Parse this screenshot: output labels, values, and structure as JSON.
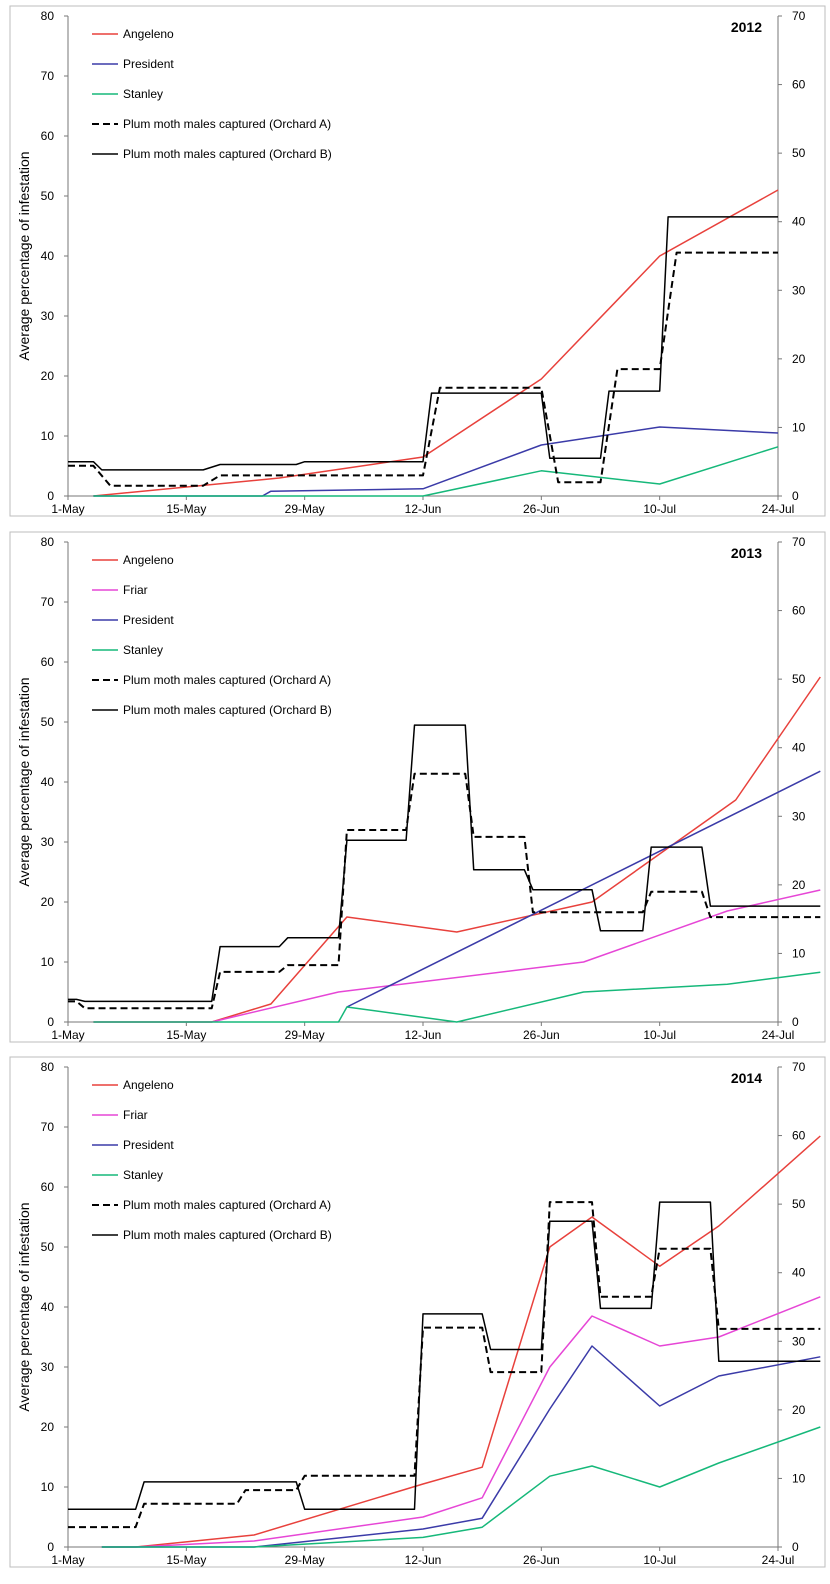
{
  "chart_data": [
    {
      "type": "line",
      "title": "2012",
      "ylabel": "Average percentage of infestation",
      "y2label": "Average number of males per trap per week",
      "ylim": [
        0,
        80
      ],
      "y2lim": [
        0,
        70
      ],
      "yticks": [
        "0",
        "10",
        "20",
        "30",
        "40",
        "50",
        "60",
        "70",
        "80"
      ],
      "y2ticks": [
        "0",
        "10",
        "20",
        "30",
        "40",
        "50",
        "60",
        "70"
      ],
      "xticks": [
        {
          "label": "1-May",
          "day": 0
        },
        {
          "label": "15-May",
          "day": 14
        },
        {
          "label": "29-May",
          "day": 28
        },
        {
          "label": "12-Jun",
          "day": 42
        },
        {
          "label": "26-Jun",
          "day": 56
        },
        {
          "label": "10-Jul",
          "day": 70
        },
        {
          "label": "24-Jul",
          "day": 84
        }
      ],
      "x_range_days": [
        0,
        84
      ],
      "grid": false,
      "legend": "top-left",
      "colors": {
        "Angeleno": "#e8413c",
        "Friar": "#e646d6",
        "President": "#3b3ba8",
        "Stanley": "#16b87a",
        "Orchard A": "#000000",
        "Orchard B": "#000000"
      },
      "series": [
        {
          "name": "Angeleno",
          "axis": "left",
          "style": "solid",
          "color": "#e8413c",
          "x": [
            "4-May",
            "26-May",
            "12-Jun",
            "26-Jun",
            "10-Jul",
            "24-Jul"
          ],
          "y": [
            0,
            3,
            6.5,
            19.5,
            40,
            51
          ]
        },
        {
          "name": "President",
          "axis": "left",
          "style": "solid",
          "color": "#3b3ba8",
          "x": [
            "4-May",
            "24-May",
            "25-May",
            "12-Jun",
            "26-Jun",
            "10-Jul",
            "24-Jul"
          ],
          "y": [
            0,
            0,
            0.8,
            1.2,
            8.5,
            11.5,
            10.5
          ]
        },
        {
          "name": "Stanley",
          "axis": "left",
          "style": "solid",
          "color": "#16b87a",
          "x": [
            "4-May",
            "12-Jun",
            "26-Jun",
            "10-Jul",
            "24-Jul"
          ],
          "y": [
            0,
            0,
            4.2,
            2,
            8.2
          ]
        },
        {
          "name": "Plum moth males captured (Orchard A)",
          "axis": "right",
          "style": "dashed",
          "color": "#000000",
          "step": true,
          "x": [
            "1-May",
            "4-May",
            "6-May",
            "17-May",
            "19-May",
            "12-Jun",
            "14-Jun",
            "26-Jun",
            "28-Jun",
            "3-Jul",
            "5-Jul",
            "10-Jul",
            "12-Jul",
            "24-Jul"
          ],
          "y": [
            4.4,
            4.4,
            1.5,
            1.5,
            3,
            3,
            15.8,
            15.8,
            2,
            2,
            18.5,
            18.5,
            35.5,
            35.5
          ]
        },
        {
          "name": "Plum moth males captured (Orchard B)",
          "axis": "right",
          "style": "solid",
          "color": "#000000",
          "step": true,
          "x": [
            "1-May",
            "4-May",
            "5-May",
            "17-May",
            "19-May",
            "28-May",
            "29-May",
            "12-Jun",
            "13-Jun",
            "26-Jun",
            "27-Jun",
            "3-Jul",
            "4-Jul",
            "10-Jul",
            "11-Jul",
            "24-Jul"
          ],
          "y": [
            5,
            5,
            3.8,
            3.8,
            4.6,
            4.6,
            5,
            5,
            15,
            15,
            5.5,
            5.5,
            15.3,
            15.3,
            40.7,
            40.7
          ]
        }
      ]
    },
    {
      "type": "line",
      "title": "2013",
      "ylabel": "Average percentage of infestation",
      "y2label": "Average number of males per trap per week",
      "ylim": [
        0,
        80
      ],
      "y2lim": [
        0,
        70
      ],
      "yticks": [
        "0",
        "10",
        "20",
        "30",
        "40",
        "50",
        "60",
        "70",
        "80"
      ],
      "y2ticks": [
        "0",
        "10",
        "20",
        "30",
        "40",
        "50",
        "60",
        "70"
      ],
      "xticks": [
        {
          "label": "1-May",
          "day": 0
        },
        {
          "label": "15-May",
          "day": 14
        },
        {
          "label": "29-May",
          "day": 28
        },
        {
          "label": "12-Jun",
          "day": 42
        },
        {
          "label": "26-Jun",
          "day": 56
        },
        {
          "label": "10-Jul",
          "day": 70
        },
        {
          "label": "24-Jul",
          "day": 84
        }
      ],
      "x_range_days": [
        0,
        84
      ],
      "grid": false,
      "legend": "top-left",
      "colors": {
        "Angeleno": "#e8413c",
        "Friar": "#e646d6",
        "President": "#3b3ba8",
        "Stanley": "#16b87a",
        "Orchard A": "#000000",
        "Orchard B": "#000000"
      },
      "series": [
        {
          "name": "Angeleno",
          "axis": "left",
          "style": "solid",
          "color": "#e8413c",
          "x": [
            "4-May",
            "18-May",
            "25-May",
            "3-Jun",
            "16-Jun",
            "2-Jul",
            "19-Jul",
            "29-Jul"
          ],
          "y": [
            0,
            0,
            3,
            17.5,
            15,
            20,
            37,
            57.5
          ]
        },
        {
          "name": "Friar",
          "axis": "left",
          "style": "solid",
          "color": "#e646d6",
          "x": [
            "4-May",
            "18-May",
            "2-Jun",
            "1-Jul",
            "18-Jul",
            "29-Jul"
          ],
          "y": [
            0,
            0,
            5,
            10,
            18.5,
            22
          ]
        },
        {
          "name": "President",
          "axis": "left",
          "style": "solid",
          "color": "#3b3ba8",
          "x": [
            "3-Jun",
            "29-Jul"
          ],
          "y": [
            2.5,
            41.8
          ]
        },
        {
          "name": "Stanley",
          "axis": "left",
          "style": "solid",
          "color": "#16b87a",
          "x": [
            "4-May",
            "2-Jun",
            "3-Jun",
            "16-Jun",
            "1-Jul",
            "18-Jul",
            "29-Jul"
          ],
          "y": [
            0,
            0,
            2.5,
            0,
            5,
            6.3,
            8.3
          ]
        },
        {
          "name": "Plum moth males captured (Orchard A)",
          "axis": "right",
          "style": "dashed",
          "color": "#000000",
          "step": true,
          "x": [
            "1-May",
            "2-May",
            "3-May",
            "18-May",
            "19-May",
            "26-May",
            "27-May",
            "2-Jun",
            "3-Jun",
            "10-Jun",
            "11-Jun",
            "17-Jun",
            "18-Jun",
            "24-Jun",
            "25-Jun",
            "8-Jul",
            "9-Jul",
            "15-Jul",
            "16-Jul",
            "29-Jul"
          ],
          "y": [
            3,
            3,
            2,
            2,
            7.3,
            7.3,
            8.3,
            8.3,
            28,
            28,
            36.2,
            36.2,
            27,
            27,
            16,
            16,
            19,
            19,
            15.3,
            15.3
          ]
        },
        {
          "name": "Plum moth males captured (Orchard B)",
          "axis": "right",
          "style": "solid",
          "color": "#000000",
          "step": true,
          "x": [
            "1-May",
            "2-May",
            "3-May",
            "18-May",
            "19-May",
            "26-May",
            "27-May",
            "2-Jun",
            "3-Jun",
            "10-Jun",
            "11-Jun",
            "17-Jun",
            "18-Jun",
            "24-Jun",
            "25-Jun",
            "2-Jul",
            "3-Jul",
            "8-Jul",
            "9-Jul",
            "15-Jul",
            "16-Jul",
            "29-Jul"
          ],
          "y": [
            3.3,
            3.3,
            3,
            3,
            11,
            11,
            12.3,
            12.3,
            26.5,
            26.5,
            43.3,
            43.3,
            22.2,
            22.2,
            19.3,
            19.3,
            13.3,
            13.3,
            25.5,
            25.5,
            16.9,
            16.9
          ]
        }
      ]
    },
    {
      "type": "line",
      "title": "2014",
      "ylabel": "Average percentage of infestation",
      "y2label": "Average number of males per trap per week",
      "ylim": [
        0,
        80
      ],
      "y2lim": [
        0,
        70
      ],
      "yticks": [
        "0",
        "10",
        "20",
        "30",
        "40",
        "50",
        "60",
        "70",
        "80"
      ],
      "y2ticks": [
        "0",
        "10",
        "20",
        "30",
        "40",
        "50",
        "60",
        "70"
      ],
      "xticks": [
        {
          "label": "1-May",
          "day": 0
        },
        {
          "label": "15-May",
          "day": 14
        },
        {
          "label": "29-May",
          "day": 28
        },
        {
          "label": "12-Jun",
          "day": 42
        },
        {
          "label": "26-Jun",
          "day": 56
        },
        {
          "label": "10-Jul",
          "day": 70
        },
        {
          "label": "24-Jul",
          "day": 84
        }
      ],
      "x_range_days": [
        0,
        84
      ],
      "grid": false,
      "legend": "top-left",
      "colors": {
        "Angeleno": "#e8413c",
        "Friar": "#e646d6",
        "President": "#3b3ba8",
        "Stanley": "#16b87a",
        "Orchard A": "#000000",
        "Orchard B": "#000000"
      },
      "series": [
        {
          "name": "Angeleno",
          "axis": "left",
          "style": "solid",
          "color": "#e8413c",
          "x": [
            "5-May",
            "9-May",
            "23-May",
            "12-Jun",
            "19-Jun",
            "27-Jun",
            "2-Jul",
            "10-Jul",
            "17-Jul",
            "29-Jul"
          ],
          "y": [
            0,
            0,
            2,
            10.5,
            13.3,
            50,
            55,
            46.8,
            53.5,
            68.5
          ]
        },
        {
          "name": "Friar",
          "axis": "left",
          "style": "solid",
          "color": "#e646d6",
          "x": [
            "5-May",
            "9-May",
            "23-May",
            "12-Jun",
            "19-Jun",
            "27-Jun",
            "2-Jul",
            "10-Jul",
            "17-Jul",
            "29-Jul"
          ],
          "y": [
            0,
            0,
            1,
            5,
            8.2,
            30,
            38.5,
            33.5,
            35,
            41.7
          ]
        },
        {
          "name": "President",
          "axis": "left",
          "style": "solid",
          "color": "#3b3ba8",
          "x": [
            "5-May",
            "23-May",
            "12-Jun",
            "19-Jun",
            "27-Jun",
            "2-Jul",
            "10-Jul",
            "17-Jul",
            "29-Jul"
          ],
          "y": [
            0,
            0,
            3,
            4.8,
            23,
            33.5,
            23.5,
            28.5,
            31.7
          ]
        },
        {
          "name": "Stanley",
          "axis": "left",
          "style": "solid",
          "color": "#16b87a",
          "x": [
            "5-May",
            "23-May",
            "12-Jun",
            "19-Jun",
            "27-Jun",
            "2-Jul",
            "10-Jul",
            "17-Jul",
            "29-Jul"
          ],
          "y": [
            0,
            0,
            1.6,
            3.3,
            11.8,
            13.5,
            10,
            14,
            20
          ]
        },
        {
          "name": "Plum moth males captured (Orchard A)",
          "axis": "right",
          "style": "dashed",
          "color": "#000000",
          "step": true,
          "x": [
            "1-May",
            "9-May",
            "10-May",
            "21-May",
            "22-May",
            "28-May",
            "29-May",
            "11-Jun",
            "12-Jun",
            "19-Jun",
            "20-Jun",
            "26-Jun",
            "27-Jun",
            "2-Jul",
            "3-Jul",
            "9-Jul",
            "10-Jul",
            "16-Jul",
            "17-Jul",
            "29-Jul"
          ],
          "y": [
            2.9,
            2.9,
            6.3,
            6.3,
            8.3,
            8.3,
            10.4,
            10.4,
            32,
            32,
            25.5,
            25.5,
            50.3,
            50.3,
            36.5,
            36.5,
            43.5,
            43.5,
            31.8,
            31.8
          ]
        },
        {
          "name": "Plum moth males captured (Orchard B)",
          "axis": "right",
          "style": "solid",
          "color": "#000000",
          "step": true,
          "x": [
            "1-May",
            "9-May",
            "10-May",
            "28-May",
            "29-May",
            "11-Jun",
            "12-Jun",
            "19-Jun",
            "20-Jun",
            "26-Jun",
            "27-Jun",
            "2-Jul",
            "3-Jul",
            "9-Jul",
            "10-Jul",
            "16-Jul",
            "17-Jul",
            "29-Jul"
          ],
          "y": [
            5.5,
            5.5,
            9.5,
            9.5,
            5.5,
            5.5,
            34,
            34,
            28.8,
            28.8,
            47.5,
            47.5,
            34.8,
            34.8,
            50.3,
            50.3,
            27.1,
            27.1
          ]
        }
      ]
    }
  ]
}
